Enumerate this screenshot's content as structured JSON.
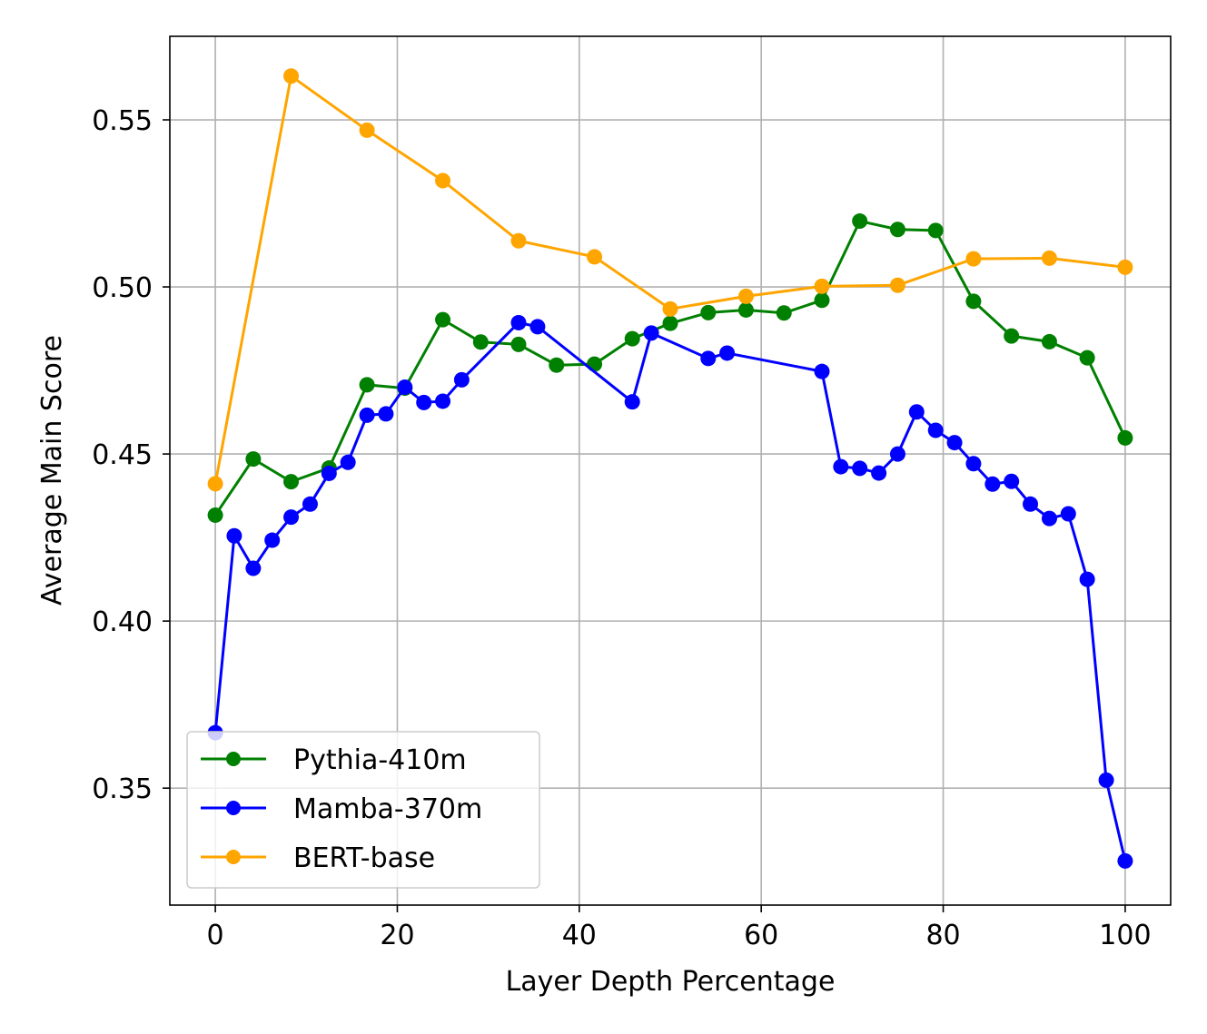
{
  "chart_data": {
    "type": "line",
    "title": "",
    "xlabel": "Layer Depth Percentage",
    "ylabel": "Average Main Score",
    "xlim": [
      -5,
      105
    ],
    "ylim": [
      0.315,
      0.575
    ],
    "xticks": [
      0,
      20,
      40,
      60,
      80,
      100
    ],
    "yticks": [
      0.35,
      0.4,
      0.45,
      0.5,
      0.55
    ],
    "xtick_labels": [
      "0",
      "20",
      "40",
      "60",
      "80",
      "100"
    ],
    "ytick_labels": [
      "0.35",
      "0.40",
      "0.45",
      "0.50",
      "0.55"
    ],
    "grid": true,
    "legend_position": "lower-left",
    "series": [
      {
        "name": "Pythia-410m",
        "color": "#008000",
        "x": [
          0,
          4.17,
          8.33,
          12.5,
          16.67,
          20.83,
          25,
          29.17,
          33.33,
          37.5,
          41.67,
          45.83,
          50,
          54.17,
          58.33,
          62.5,
          66.67,
          70.83,
          75,
          79.17,
          83.33,
          87.5,
          91.67,
          95.83,
          100
        ],
        "y": [
          0.4317,
          0.4485,
          0.4417,
          0.4458,
          0.4707,
          0.4697,
          0.4902,
          0.4835,
          0.4828,
          0.4766,
          0.4769,
          0.4845,
          0.4891,
          0.4923,
          0.4931,
          0.4922,
          0.496,
          0.5197,
          0.5172,
          0.5169,
          0.4957,
          0.4853,
          0.4836,
          0.4788,
          0.4548
        ]
      },
      {
        "name": "Mamba-370m",
        "color": "#0000ff",
        "x": [
          0,
          2.08,
          4.17,
          6.25,
          8.33,
          10.42,
          12.5,
          14.58,
          16.67,
          18.75,
          20.83,
          22.92,
          25,
          27.08,
          33.33,
          35.42,
          45.83,
          47.92,
          54.17,
          56.25,
          66.67,
          68.75,
          70.83,
          72.92,
          75,
          77.08,
          79.17,
          81.25,
          83.33,
          85.42,
          87.5,
          89.58,
          91.67,
          93.75,
          95.83,
          97.92,
          100
        ],
        "y": [
          0.3666,
          0.4255,
          0.4158,
          0.4242,
          0.4311,
          0.435,
          0.4442,
          0.4475,
          0.4616,
          0.462,
          0.47,
          0.4654,
          0.4658,
          0.4722,
          0.4893,
          0.4881,
          0.4656,
          0.4862,
          0.4786,
          0.4802,
          0.4747,
          0.4462,
          0.4457,
          0.4443,
          0.45,
          0.4626,
          0.4571,
          0.4534,
          0.4471,
          0.441,
          0.4418,
          0.435,
          0.4307,
          0.4321,
          0.4125,
          0.3524,
          0.3282
        ]
      },
      {
        "name": "BERT-base",
        "color": "#ffa500",
        "x": [
          0,
          8.33,
          16.67,
          25,
          33.33,
          41.67,
          50,
          58.33,
          66.67,
          75,
          83.33,
          91.67,
          100
        ],
        "y": [
          0.4411,
          0.5631,
          0.5469,
          0.5318,
          0.5138,
          0.509,
          0.4934,
          0.4972,
          0.5002,
          0.5005,
          0.5084,
          0.5086,
          0.5059
        ]
      }
    ]
  }
}
